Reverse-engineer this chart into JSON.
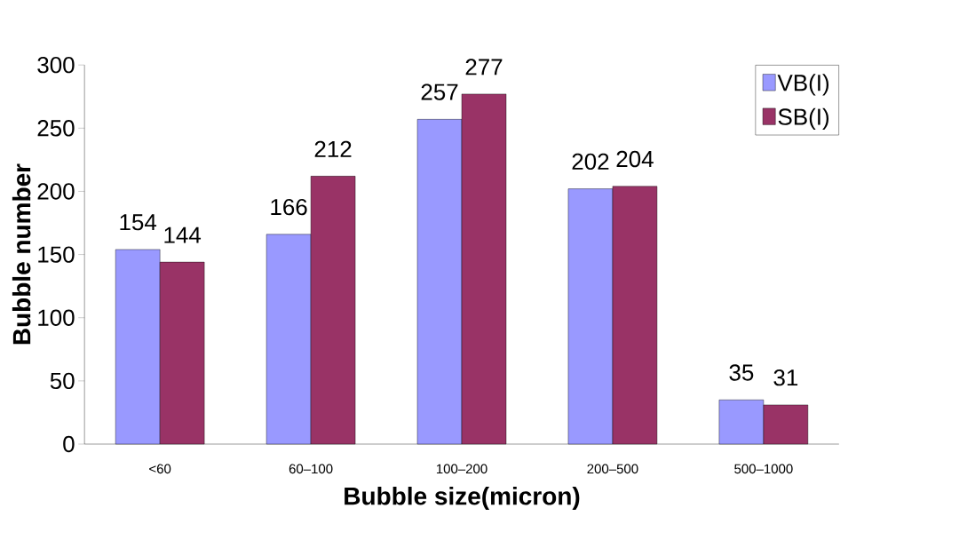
{
  "chart_data": {
    "type": "bar",
    "xlabel": "Bubble size(micron)",
    "ylabel": "Bubble number",
    "categories": [
      "<60",
      "60–100",
      "100–200",
      "200–500",
      "500–1000"
    ],
    "series": [
      {
        "name": "VB(I)",
        "color": "#9999ff",
        "values": [
          154,
          166,
          257,
          202,
          35
        ]
      },
      {
        "name": "SB(I)",
        "color": "#993366",
        "values": [
          144,
          212,
          277,
          204,
          31
        ]
      }
    ],
    "ylim": [
      0,
      300
    ],
    "yticks": [
      0,
      50,
      100,
      150,
      200,
      250,
      300
    ],
    "data_labels": true,
    "legend": "top right"
  }
}
